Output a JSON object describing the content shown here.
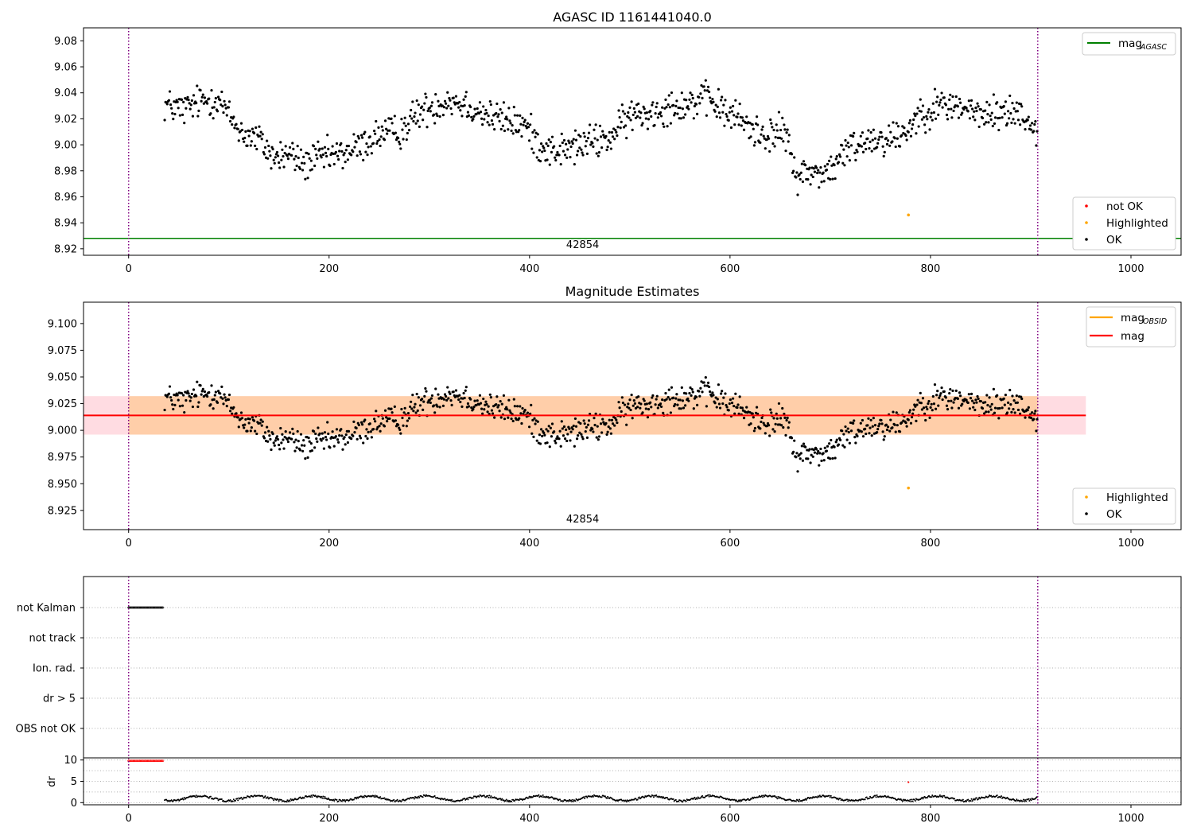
{
  "chart_data": [
    {
      "type": "scatter",
      "title": "AGASC ID 1161441040.0",
      "xlim": [
        -45,
        1050
      ],
      "ylim": [
        8.915,
        9.09
      ],
      "x_ticks": [
        "0",
        "200",
        "400",
        "600",
        "800",
        "1000"
      ],
      "y_ticks": [
        "8.92",
        "8.94",
        "8.96",
        "8.98",
        "9.00",
        "9.02",
        "9.04",
        "9.06",
        "9.08"
      ],
      "obsid_boundaries": [
        0,
        907
      ],
      "obsid_label": "42854",
      "obsid_label_x": 453,
      "lines": [
        {
          "name": "magAGASC",
          "y": 8.928,
          "color": "#008000"
        }
      ],
      "legend_lines": [
        {
          "main": "mag",
          "sub": "AGASC",
          "color": "#008000"
        }
      ],
      "legend_points": [
        {
          "label": "not OK",
          "color": "#ff0000"
        },
        {
          "label": "Highlighted",
          "color": "#ffa500"
        },
        {
          "label": "OK",
          "color": "#000000"
        }
      ],
      "highlighted_points": [
        {
          "x": 778,
          "y": 8.946
        }
      ],
      "ok_series_trend": [
        [
          36,
          9.031
        ],
        [
          55,
          9.027
        ],
        [
          70,
          9.033
        ],
        [
          90,
          9.036
        ],
        [
          100,
          9.022
        ],
        [
          115,
          9.008
        ],
        [
          130,
          9.004
        ],
        [
          145,
          8.99
        ],
        [
          160,
          8.993
        ],
        [
          175,
          8.985
        ],
        [
          190,
          8.99
        ],
        [
          210,
          8.992
        ],
        [
          230,
          8.998
        ],
        [
          250,
          9.008
        ],
        [
          270,
          9.01
        ],
        [
          290,
          9.025
        ],
        [
          305,
          9.03
        ],
        [
          320,
          9.035
        ],
        [
          340,
          9.03
        ],
        [
          360,
          9.022
        ],
        [
          380,
          9.018
        ],
        [
          395,
          9.015
        ],
        [
          410,
          9.0
        ],
        [
          425,
          8.995
        ],
        [
          440,
          8.997
        ],
        [
          460,
          9.002
        ],
        [
          480,
          9.005
        ],
        [
          500,
          9.022
        ],
        [
          520,
          9.025
        ],
        [
          540,
          9.03
        ],
        [
          560,
          9.032
        ],
        [
          580,
          9.035
        ],
        [
          595,
          9.025
        ],
        [
          610,
          9.02
        ],
        [
          625,
          9.01
        ],
        [
          640,
          9.008
        ],
        [
          655,
          9.01
        ],
        [
          665,
          8.978
        ],
        [
          680,
          8.978
        ],
        [
          700,
          8.98
        ],
        [
          720,
          8.998
        ],
        [
          740,
          9.005
        ],
        [
          760,
          9.005
        ],
        [
          775,
          9.01
        ],
        [
          790,
          9.025
        ],
        [
          810,
          9.03
        ],
        [
          830,
          9.03
        ],
        [
          850,
          9.022
        ],
        [
          870,
          9.025
        ],
        [
          890,
          9.025
        ],
        [
          907,
          9.01
        ]
      ]
    },
    {
      "type": "scatter",
      "title": "Magnitude Estimates",
      "xlim": [
        -45,
        1050
      ],
      "ylim": [
        8.907,
        9.12
      ],
      "x_ticks": [
        "0",
        "200",
        "400",
        "600",
        "800",
        "1000"
      ],
      "y_ticks": [
        "8.925",
        "8.950",
        "8.975",
        "9.000",
        "9.025",
        "9.050",
        "9.075",
        "9.100"
      ],
      "obsid_boundaries": [
        0,
        907
      ],
      "obsid_label": "42854",
      "obsid_label_x": 453,
      "mag_line": {
        "y": 9.014,
        "x_range": [
          -45,
          955
        ],
        "color": "#ff0000"
      },
      "mag_band": {
        "y_range": [
          8.996,
          9.032
        ],
        "x_range": [
          -45,
          955
        ],
        "color": "#ffc0cb"
      },
      "mag_obsid_band": {
        "y_range": [
          8.996,
          9.032
        ],
        "x_range": [
          0,
          907
        ],
        "color": "#ffa500"
      },
      "legend_lines": [
        {
          "main": "mag",
          "sub": "OBSID",
          "color": "#ffa500"
        },
        {
          "main": "mag",
          "sub": "",
          "color": "#ff0000"
        }
      ],
      "legend_points": [
        {
          "label": "Highlighted",
          "color": "#ffa500"
        },
        {
          "label": "OK",
          "color": "#000000"
        }
      ],
      "highlighted_points": [
        {
          "x": 778,
          "y": 8.946
        }
      ]
    },
    {
      "type": "scatter",
      "title": "",
      "xlim": [
        -45,
        1050
      ],
      "flags": [
        "not Kalman",
        "not track",
        "Ion. rad.",
        "dr > 5",
        "OBS not OK"
      ],
      "flag_points": [
        {
          "flag": "not Kalman",
          "x_range": [
            0,
            35
          ]
        }
      ],
      "obsid_boundaries": [
        0,
        907
      ]
    },
    {
      "type": "scatter",
      "title": "",
      "ylabel": "dr",
      "xlim": [
        -45,
        1050
      ],
      "ylim": [
        -0.5,
        10.5
      ],
      "x_ticks": [
        "0",
        "200",
        "400",
        "600",
        "800",
        "1000"
      ],
      "y_ticks": [
        "0",
        "5",
        "10"
      ],
      "grid_y": [
        0,
        2.5,
        5,
        7.5,
        10
      ],
      "not_ok_points": [
        {
          "x_range": [
            0,
            35
          ],
          "y": 9.8
        },
        {
          "x": 778,
          "y": 4.8
        }
      ],
      "obsid_boundaries": [
        0,
        907
      ]
    }
  ]
}
